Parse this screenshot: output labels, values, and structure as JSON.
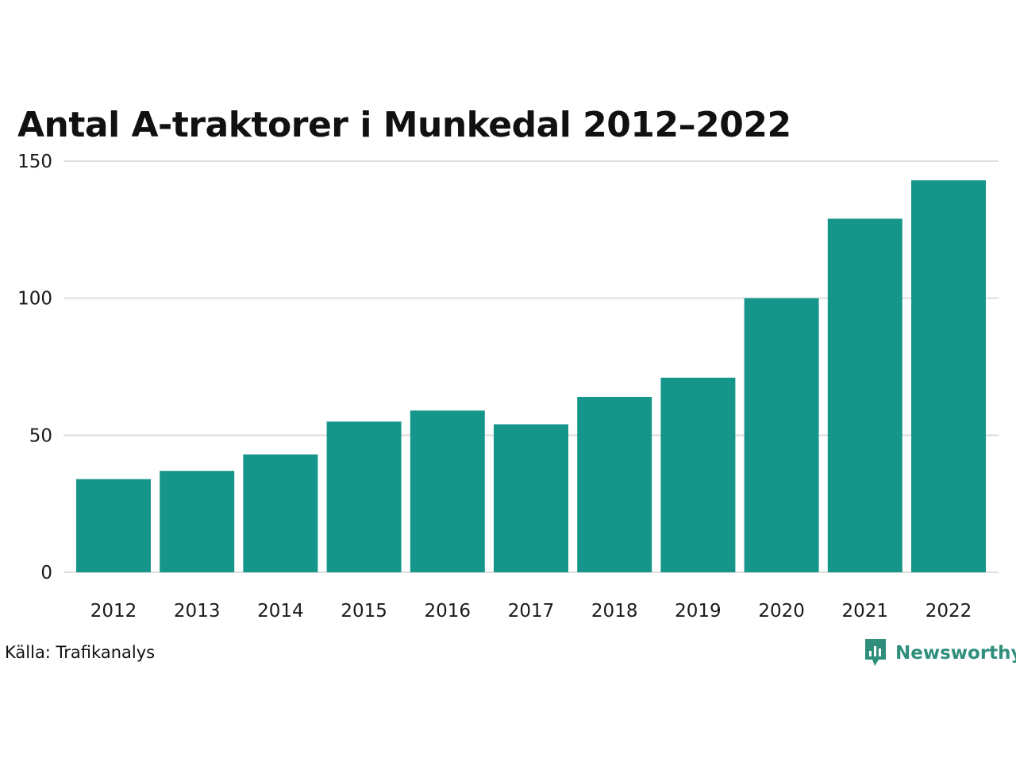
{
  "chart_data": {
    "type": "bar",
    "title": "Antal A-traktorer i Munkedal 2012–2022",
    "categories": [
      "2012",
      "2013",
      "2014",
      "2015",
      "2016",
      "2017",
      "2018",
      "2019",
      "2020",
      "2021",
      "2022"
    ],
    "values": [
      34,
      37,
      43,
      55,
      59,
      54,
      64,
      71,
      100,
      129,
      143
    ],
    "yticks": [
      "0",
      "50",
      "100",
      "150"
    ],
    "ylim": [
      0,
      150
    ],
    "grid": true,
    "bar_color": "#16968a",
    "xlabel": "",
    "ylabel": ""
  },
  "footer": {
    "source": "Källa: Trafikanalys",
    "brand": "Newsworthy",
    "brand_color": "#2f8f7c",
    "brand_icon": "newsworthy-logo-icon"
  }
}
